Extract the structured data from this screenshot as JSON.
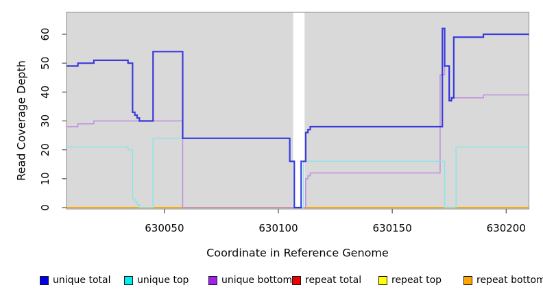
{
  "figure": {
    "ylabel": "Read Coverage Depth",
    "xlabel": "Coordinate in Reference Genome"
  },
  "chart_data": {
    "type": "line",
    "step_style": "post",
    "title": "",
    "xlabel": "Coordinate in Reference Genome",
    "ylabel": "Read Coverage Depth",
    "xlim": [
      630007,
      630210
    ],
    "ylim": [
      0,
      60
    ],
    "x_ticks": [
      630050,
      630100,
      630150,
      630200
    ],
    "y_ticks": [
      0,
      10,
      20,
      30,
      40,
      50,
      60
    ],
    "panel_bg": "#d9d9d9",
    "grid": false,
    "legend_position": "bottom",
    "no_data_region": {
      "start": 630107,
      "end": 630111
    },
    "series": [
      {
        "name": "unique total",
        "legend_color": "#0000EE",
        "line_color": "#2323DC",
        "points": [
          [
            630007,
            49
          ],
          [
            630012,
            50
          ],
          [
            630019,
            51
          ],
          [
            630034,
            50
          ],
          [
            630036,
            33
          ],
          [
            630037,
            32
          ],
          [
            630038,
            31
          ],
          [
            630039,
            30
          ],
          [
            630045,
            54
          ],
          [
            630058,
            24
          ],
          [
            630105,
            16
          ],
          [
            630107,
            0
          ],
          [
            630110,
            16
          ],
          [
            630112,
            26
          ],
          [
            630113,
            27
          ],
          [
            630114,
            28
          ],
          [
            630172,
            62
          ],
          [
            630173,
            49
          ],
          [
            630175,
            37
          ],
          [
            630176,
            38
          ],
          [
            630177,
            59
          ],
          [
            630190,
            60
          ]
        ]
      },
      {
        "name": "unique top",
        "legend_color": "#00EEEE",
        "line_color": "#8BE4E6",
        "points": [
          [
            630007,
            21
          ],
          [
            630034,
            20
          ],
          [
            630036,
            3
          ],
          [
            630037,
            2
          ],
          [
            630038,
            1
          ],
          [
            630039,
            0
          ],
          [
            630045,
            24
          ],
          [
            630105,
            16
          ],
          [
            630107,
            0
          ],
          [
            630111,
            16
          ],
          [
            630173,
            0
          ],
          [
            630178,
            21
          ]
        ]
      },
      {
        "name": "unique bottom",
        "legend_color": "#A020F0",
        "line_color": "#BE8EDD",
        "points": [
          [
            630007,
            28
          ],
          [
            630012,
            29
          ],
          [
            630019,
            30
          ],
          [
            630058,
            0
          ],
          [
            630112,
            10
          ],
          [
            630113,
            11
          ],
          [
            630114,
            12
          ],
          [
            630171,
            46
          ],
          [
            630173,
            49
          ],
          [
            630175,
            37
          ],
          [
            630176,
            38
          ],
          [
            630190,
            39
          ]
        ]
      },
      {
        "name": "repeat total",
        "legend_color": "#EE0000",
        "line_color": "#D42A2A",
        "points": [
          [
            630007,
            0
          ]
        ]
      },
      {
        "name": "repeat top",
        "legend_color": "#FFFF00",
        "line_color": "#F2F20A",
        "points": [
          [
            630007,
            0
          ]
        ]
      },
      {
        "name": "repeat bottom",
        "legend_color": "#FFA500",
        "line_color": "#FFA500",
        "points": [
          [
            630007,
            0
          ]
        ]
      }
    ]
  }
}
